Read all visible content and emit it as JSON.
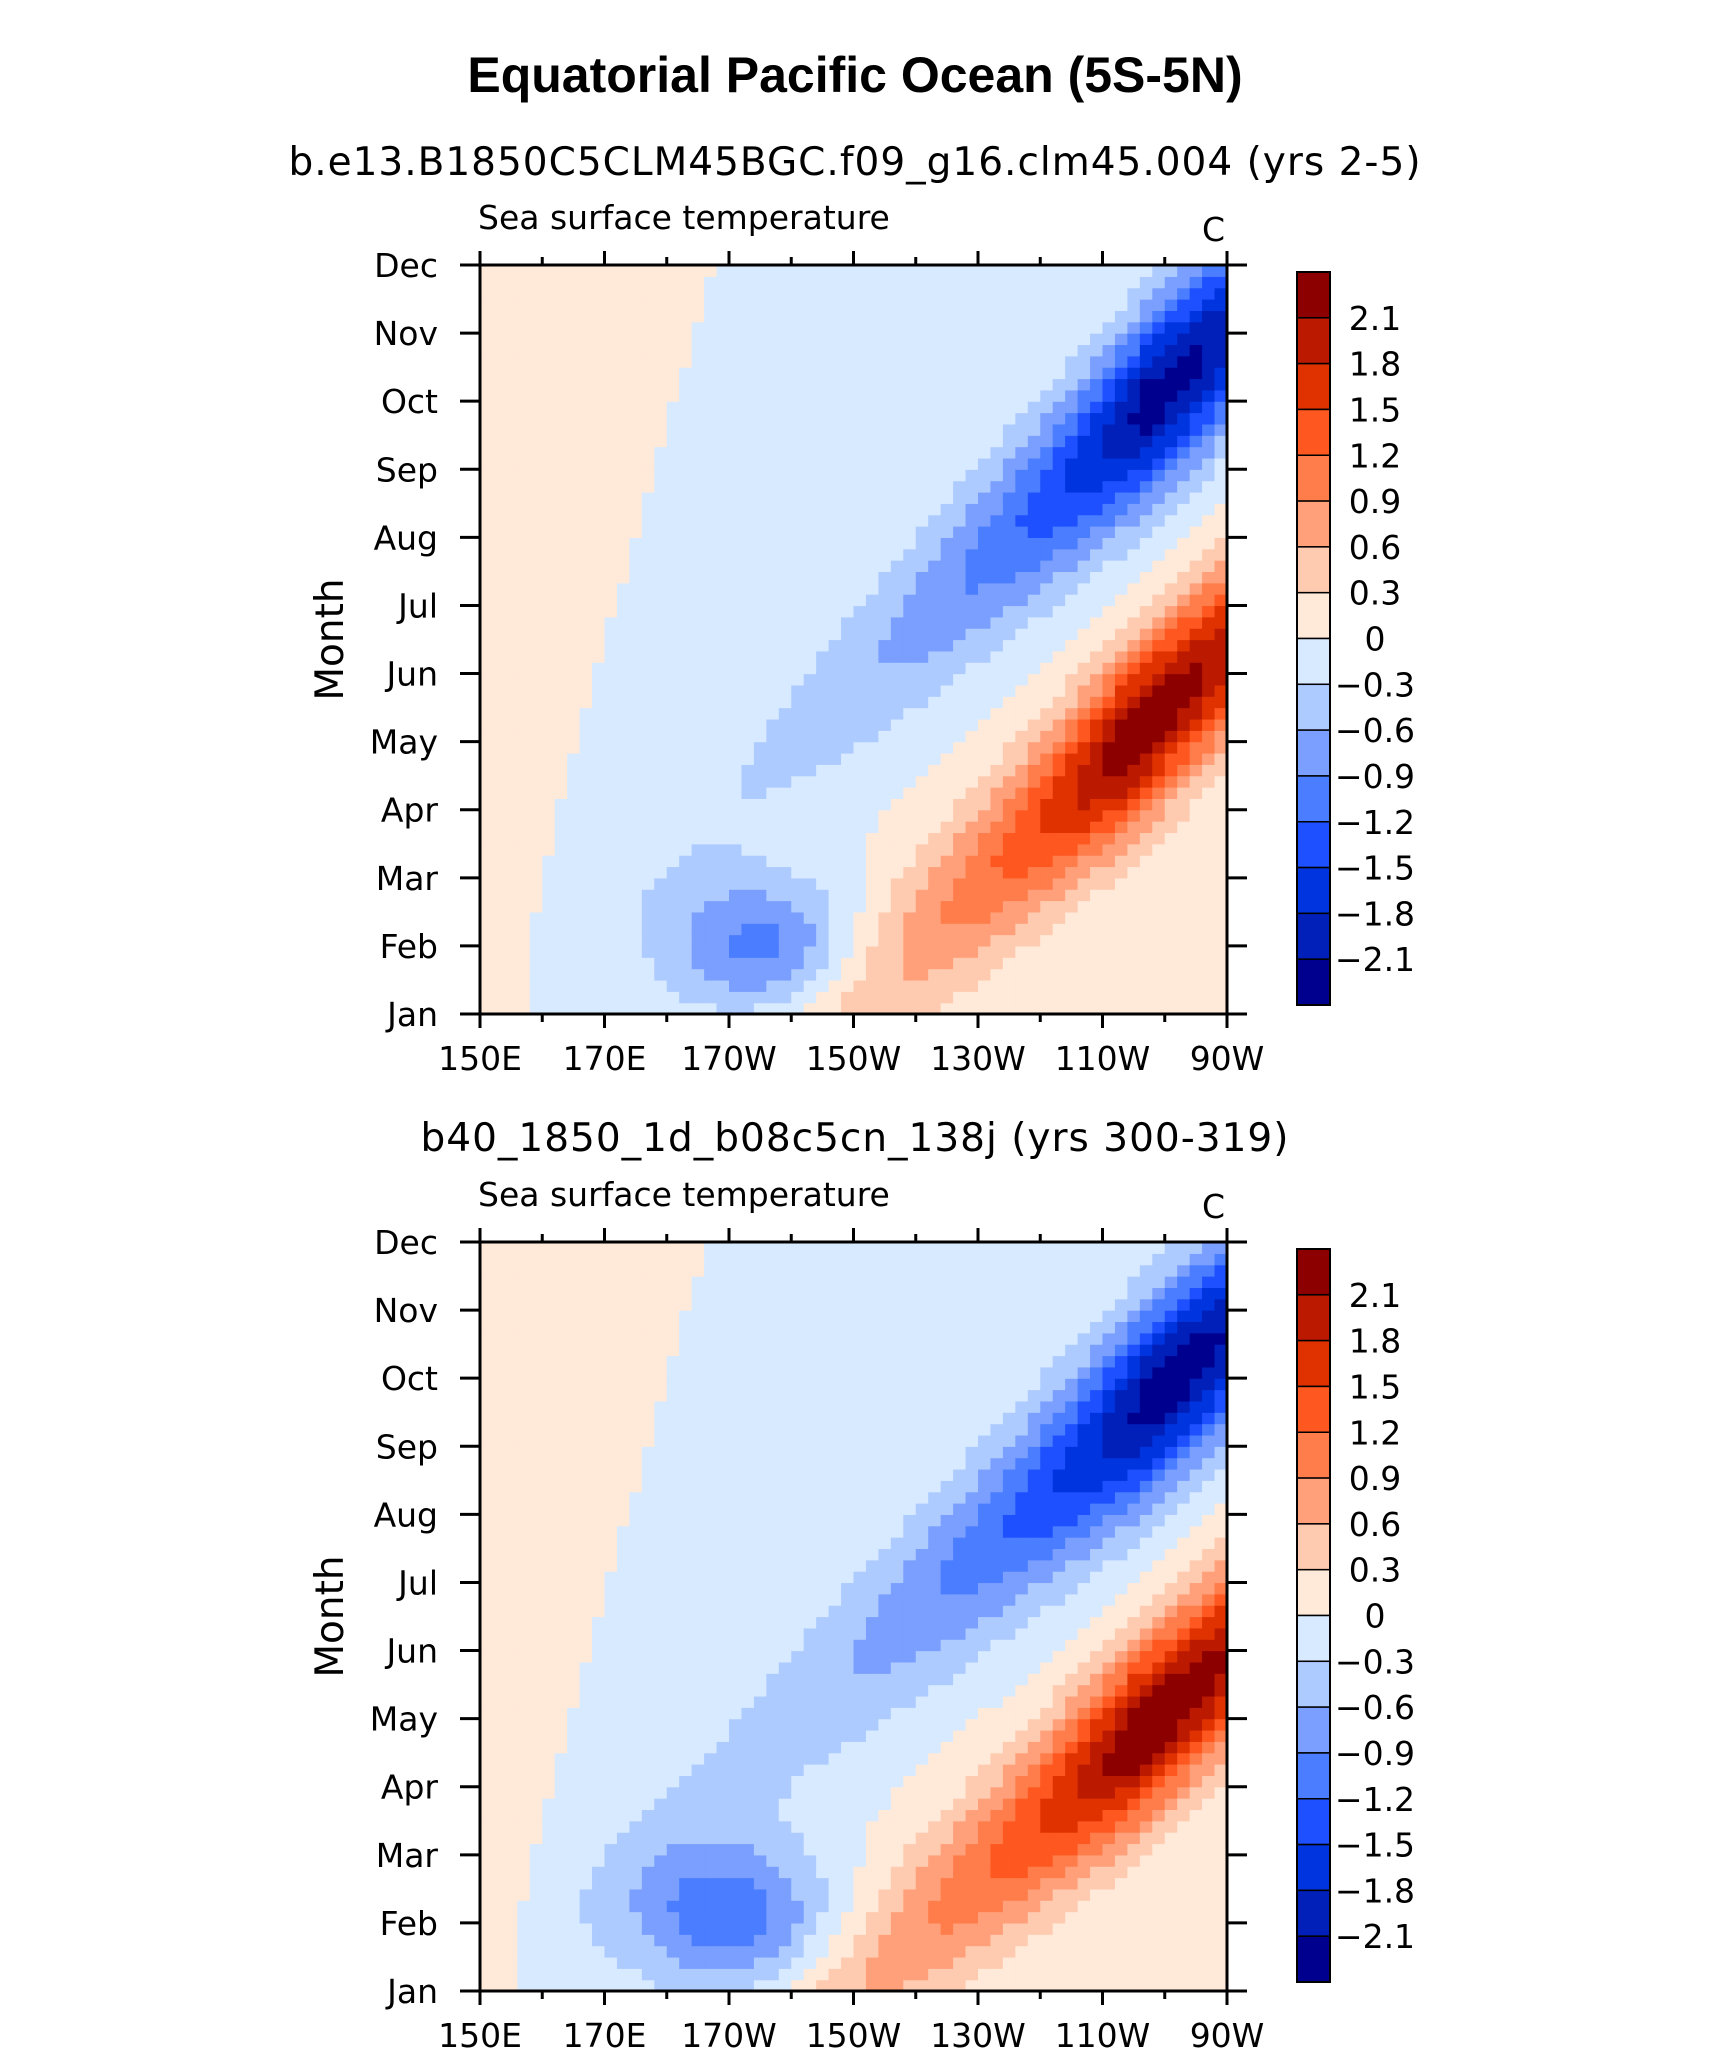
{
  "title": "Equatorial Pacific Ocean (5S-5N)",
  "colors": {
    "levels": [
      "#00008e",
      "#0020b9",
      "#0034de",
      "#1e50ff",
      "#4a7dff",
      "#7a9fff",
      "#aecbff",
      "#d7eaff",
      "#ffe9d9",
      "#ffcbb0",
      "#ffa07a",
      "#ff7d4b",
      "#ff5720",
      "#e03200",
      "#bc1a00",
      "#8c0000"
    ],
    "axis": "#000000"
  },
  "chart_data": [
    {
      "type": "heatmap",
      "title": "b.e13.B1850C5CLM45BGC.f09_g16.clm45.004 (yrs 2-5)",
      "label_left": "Sea surface temperature",
      "label_right": "C",
      "ylabel": "Month",
      "x_ticks": [
        "150E",
        "170E",
        "170W",
        "150W",
        "130W",
        "110W",
        "90W"
      ],
      "x_range": [
        150,
        270
      ],
      "y_ticks": [
        "Jan",
        "Feb",
        "Mar",
        "Apr",
        "May",
        "Jun",
        "Jul",
        "Aug",
        "Sep",
        "Oct",
        "Nov",
        "Dec"
      ],
      "colorbar_labels": [
        "2.1",
        "1.8",
        "1.5",
        "1.2",
        "0.9",
        "0.6",
        "0.3",
        "0",
        "-0.3",
        "-0.6",
        "-0.9",
        "-1.2",
        "-1.5",
        "-1.8",
        "-2.1"
      ],
      "field": {
        "warm": {
          "amp": 2.35,
          "lon": 253,
          "month": 4.9,
          "sigma_lon": 13,
          "sigma_month": 1.3,
          "decay_lon": 30
        },
        "cold": {
          "amp": -2.25,
          "lon": 257,
          "month": 9.9,
          "sigma_lon": 12,
          "sigma_month": 1.35,
          "decay_lon": 32
        },
        "cold_late": {
          "amp": -1.0,
          "lon": 195,
          "month": 2.0,
          "sigma_lon": 15,
          "sigma_month": 1.0,
          "decay_lon": 0
        },
        "tongue_slope": 0.085
      }
    },
    {
      "type": "heatmap",
      "title": "b40_1850_1d_b08c5cn_138j (yrs 300-319)",
      "label_left": "Sea surface temperature",
      "label_right": "C",
      "ylabel": "Month",
      "x_ticks": [
        "150E",
        "170E",
        "170W",
        "150W",
        "130W",
        "110W",
        "90W"
      ],
      "x_range": [
        150,
        270
      ],
      "y_ticks": [
        "Jan",
        "Feb",
        "Mar",
        "Apr",
        "May",
        "Jun",
        "Jul",
        "Aug",
        "Sep",
        "Oct",
        "Nov",
        "Dec"
      ],
      "colorbar_labels": [
        "2.1",
        "1.8",
        "1.5",
        "1.2",
        "0.9",
        "0.6",
        "0.3",
        "0",
        "-0.3",
        "-0.6",
        "-0.9",
        "-1.2",
        "-1.5",
        "-1.8",
        "-2.1"
      ],
      "field": {
        "warm": {
          "amp": 2.4,
          "lon": 255,
          "month": 4.7,
          "sigma_lon": 14,
          "sigma_month": 1.3,
          "decay_lon": 34
        },
        "cold": {
          "amp": -2.3,
          "lon": 258,
          "month": 9.7,
          "sigma_lon": 13,
          "sigma_month": 1.4,
          "decay_lon": 36
        },
        "cold_late": {
          "amp": -1.1,
          "lon": 190,
          "month": 2.1,
          "sigma_lon": 16,
          "sigma_month": 1.1,
          "decay_lon": 0
        },
        "tongue_slope": 0.08
      }
    }
  ]
}
